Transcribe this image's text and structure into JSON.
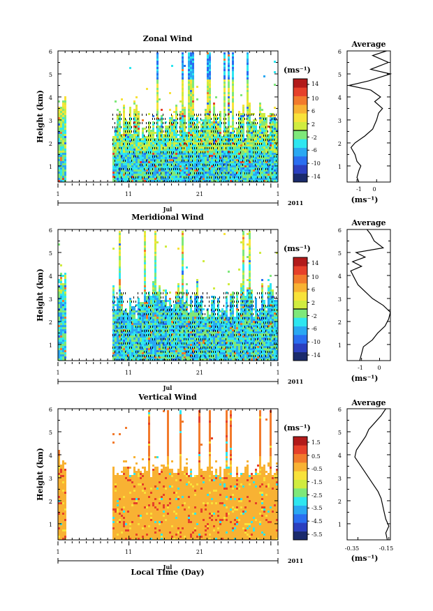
{
  "figure": {
    "year_label": "2011",
    "month_label": "Jul",
    "xlabel": "Local Time (Day)",
    "ylabel": "Height (km)",
    "average_title": "Average",
    "unit_label": "(ms⁻¹)"
  },
  "chart_data": [
    {
      "type": "heatmap",
      "title": "Zonal Wind",
      "xlabel": "",
      "ylabel": "Height (km)",
      "x_ticks": [
        "1",
        "11",
        "21",
        "1"
      ],
      "x_range_days": [
        1,
        32
      ],
      "y_ticks": [
        "1",
        "2",
        "3",
        "4",
        "5",
        "6"
      ],
      "ylim": [
        0.3,
        6
      ],
      "data_start_day": 8.5,
      "early_burst_days": [
        1,
        2
      ],
      "colorbar": {
        "label": "(ms⁻¹)",
        "ticks": [
          "14",
          "10",
          "6",
          "2",
          "-2",
          "-6",
          "-10",
          "-14"
        ],
        "range": [
          -16,
          16
        ]
      },
      "average": {
        "title": "Average",
        "xlabel": "(ms⁻¹)",
        "x_ticks": [
          "-1",
          "0"
        ],
        "xlim": [
          -1.5,
          0.7
        ],
        "heights": [
          0.3,
          0.5,
          0.8,
          1.0,
          1.2,
          1.5,
          1.8,
          2.0,
          2.3,
          2.6,
          3.0,
          3.3,
          3.5,
          3.8,
          4.0,
          4.3,
          4.5,
          4.7,
          5.0,
          5.2,
          5.5,
          5.8,
          6.0
        ],
        "values": [
          -0.9,
          -1.0,
          -0.9,
          -0.8,
          -1.0,
          -1.1,
          -1.3,
          -1.1,
          -0.6,
          -0.2,
          0.0,
          0.1,
          0.3,
          -0.1,
          0.2,
          -0.3,
          -1.4,
          -0.4,
          0.7,
          -0.3,
          0.6,
          -0.2,
          0.5
        ],
        "grid": false
      }
    },
    {
      "type": "heatmap",
      "title": "Meridional Wind",
      "xlabel": "",
      "ylabel": "Height (km)",
      "x_ticks": [
        "1",
        "11",
        "21",
        "1"
      ],
      "x_range_days": [
        1,
        32
      ],
      "y_ticks": [
        "1",
        "2",
        "3",
        "4",
        "5",
        "6"
      ],
      "ylim": [
        0.3,
        6
      ],
      "data_start_day": 8.5,
      "early_burst_days": [
        1,
        2
      ],
      "colorbar": {
        "label": "(ms⁻¹)",
        "ticks": [
          "14",
          "10",
          "6",
          "2",
          "-2",
          "-6",
          "-10",
          "-14"
        ],
        "range": [
          -16,
          16
        ]
      },
      "average": {
        "title": "Average",
        "xlabel": "(ms⁻¹)",
        "x_ticks": [
          "-1",
          "0"
        ],
        "xlim": [
          -1.8,
          0.6
        ],
        "heights": [
          0.3,
          0.6,
          0.9,
          1.2,
          1.5,
          1.8,
          2.1,
          2.4,
          2.7,
          3.0,
          3.3,
          3.6,
          3.9,
          4.2,
          4.4,
          4.6,
          4.8,
          5.0,
          5.2,
          5.5,
          5.8,
          6.0
        ],
        "values": [
          -1.1,
          -1.0,
          -0.9,
          -0.4,
          -0.1,
          0.3,
          0.5,
          0.6,
          0.2,
          -0.4,
          -0.8,
          -1.2,
          -1.4,
          -1.6,
          -1.0,
          -1.5,
          -0.8,
          -1.3,
          0.2,
          -0.3,
          -0.5,
          -0.7
        ],
        "grid": false
      }
    },
    {
      "type": "heatmap",
      "title": "Vertical Wind",
      "xlabel": "Local Time (Day)",
      "ylabel": "Height (km)",
      "x_ticks": [
        "1",
        "11",
        "21",
        "1"
      ],
      "x_range_days": [
        1,
        32
      ],
      "y_ticks": [
        "1",
        "2",
        "3",
        "4",
        "5",
        "6"
      ],
      "ylim": [
        0.3,
        6
      ],
      "data_start_day": 8.5,
      "early_burst_days": [
        1,
        2
      ],
      "colorbar": {
        "label": "(ms⁻¹)",
        "ticks": [
          "1.5",
          "0.5",
          "-0.5",
          "-1.5",
          "-2.5",
          "-3.5",
          "-4.5",
          "-5.5"
        ],
        "range": [
          -6,
          2
        ]
      },
      "average": {
        "title": "Average",
        "xlabel": "(ms⁻¹)",
        "x_ticks": [
          "-0.35",
          "-0.15"
        ],
        "xlim": [
          -0.42,
          -0.14
        ],
        "heights": [
          0.3,
          0.6,
          0.9,
          1.2,
          1.5,
          1.8,
          2.1,
          2.4,
          2.7,
          3.0,
          3.3,
          3.6,
          3.9,
          4.2,
          4.5,
          4.8,
          5.1,
          5.4,
          5.7,
          6.0
        ],
        "values": [
          -0.16,
          -0.17,
          -0.15,
          -0.17,
          -0.18,
          -0.19,
          -0.2,
          -0.22,
          -0.25,
          -0.28,
          -0.31,
          -0.34,
          -0.37,
          -0.36,
          -0.33,
          -0.3,
          -0.28,
          -0.24,
          -0.2,
          -0.17
        ],
        "grid": false
      }
    }
  ],
  "colors": {
    "jet": [
      "#1a2a6c",
      "#2b3fbf",
      "#2a6ef0",
      "#2aa8f2",
      "#2ee6f0",
      "#7ee87a",
      "#d0ec3f",
      "#f8e23a",
      "#f8b233",
      "#f27a2c",
      "#e6402a",
      "#b21a1a"
    ],
    "contour": "#000000"
  }
}
